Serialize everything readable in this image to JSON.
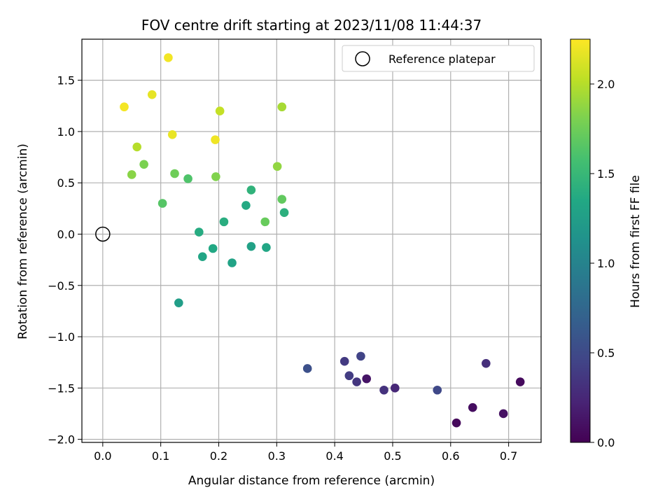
{
  "chart_data": {
    "type": "scatter",
    "title": "FOV centre drift starting at 2023/11/08 11:44:37",
    "xlabel": "Angular distance from reference (arcmin)",
    "ylabel": "Rotation from reference (arcmin)",
    "xlim": [
      -0.036,
      0.756
    ],
    "ylim": [
      -2.03,
      1.9
    ],
    "xticks": [
      0.0,
      0.1,
      0.2,
      0.3,
      0.4,
      0.5,
      0.6,
      0.7
    ],
    "xtick_labels": [
      "0.0",
      "0.1",
      "0.2",
      "0.3",
      "0.4",
      "0.5",
      "0.6",
      "0.7"
    ],
    "yticks": [
      -2.0,
      -1.5,
      -1.0,
      -0.5,
      0.0,
      0.5,
      1.0,
      1.5
    ],
    "ytick_labels": [
      "−2.0",
      "−1.5",
      "−1.0",
      "−0.5",
      "0.0",
      "0.5",
      "1.0",
      "1.5"
    ],
    "grid": true,
    "legend": {
      "placement": "top-right",
      "entries": [
        "Reference platepar"
      ]
    },
    "reference_point": {
      "x": 0.0,
      "y": 0.0
    },
    "colorbar": {
      "label": "Hours from first FF file",
      "colormap": "viridis",
      "range": [
        0.0,
        2.25
      ],
      "ticks": [
        0.0,
        0.5,
        1.0,
        1.5,
        2.0
      ],
      "tick_labels": [
        "0.0",
        "0.5",
        "1.0",
        "1.5",
        "2.0"
      ]
    },
    "points": [
      {
        "x": 0.61,
        "y": -1.84,
        "c": 0.05
      },
      {
        "x": 0.638,
        "y": -1.69,
        "c": 0.08
      },
      {
        "x": 0.691,
        "y": -1.75,
        "c": 0.1
      },
      {
        "x": 0.72,
        "y": -1.44,
        "c": 0.06
      },
      {
        "x": 0.455,
        "y": -1.41,
        "c": 0.12
      },
      {
        "x": 0.504,
        "y": -1.5,
        "c": 0.25
      },
      {
        "x": 0.661,
        "y": -1.26,
        "c": 0.3
      },
      {
        "x": 0.485,
        "y": -1.52,
        "c": 0.32
      },
      {
        "x": 0.438,
        "y": -1.44,
        "c": 0.35
      },
      {
        "x": 0.425,
        "y": -1.38,
        "c": 0.4
      },
      {
        "x": 0.417,
        "y": -1.24,
        "c": 0.38
      },
      {
        "x": 0.445,
        "y": -1.19,
        "c": 0.45
      },
      {
        "x": 0.577,
        "y": -1.52,
        "c": 0.48
      },
      {
        "x": 0.353,
        "y": -1.31,
        "c": 0.55
      },
      {
        "x": 0.131,
        "y": -0.67,
        "c": 1.25
      },
      {
        "x": 0.172,
        "y": -0.22,
        "c": 1.32
      },
      {
        "x": 0.19,
        "y": -0.14,
        "c": 1.35
      },
      {
        "x": 0.223,
        "y": -0.28,
        "c": 1.3
      },
      {
        "x": 0.256,
        "y": -0.12,
        "c": 1.28
      },
      {
        "x": 0.282,
        "y": -0.13,
        "c": 1.33
      },
      {
        "x": 0.166,
        "y": 0.02,
        "c": 1.38
      },
      {
        "x": 0.209,
        "y": 0.12,
        "c": 1.4
      },
      {
        "x": 0.247,
        "y": 0.28,
        "c": 1.36
      },
      {
        "x": 0.313,
        "y": 0.21,
        "c": 1.42
      },
      {
        "x": 0.256,
        "y": 0.43,
        "c": 1.45
      },
      {
        "x": 0.28,
        "y": 0.12,
        "c": 1.72
      },
      {
        "x": 0.103,
        "y": 0.3,
        "c": 1.65
      },
      {
        "x": 0.147,
        "y": 0.54,
        "c": 1.62
      },
      {
        "x": 0.05,
        "y": 0.58,
        "c": 1.85
      },
      {
        "x": 0.071,
        "y": 0.68,
        "c": 1.8
      },
      {
        "x": 0.124,
        "y": 0.59,
        "c": 1.75
      },
      {
        "x": 0.195,
        "y": 0.56,
        "c": 1.82
      },
      {
        "x": 0.309,
        "y": 0.34,
        "c": 1.7
      },
      {
        "x": 0.301,
        "y": 0.66,
        "c": 1.88
      },
      {
        "x": 0.059,
        "y": 0.85,
        "c": 2.0
      },
      {
        "x": 0.12,
        "y": 0.97,
        "c": 2.18
      },
      {
        "x": 0.194,
        "y": 0.92,
        "c": 2.2
      },
      {
        "x": 0.202,
        "y": 1.2,
        "c": 2.05
      },
      {
        "x": 0.309,
        "y": 1.24,
        "c": 1.95
      },
      {
        "x": 0.037,
        "y": 1.24,
        "c": 2.22
      },
      {
        "x": 0.085,
        "y": 1.36,
        "c": 2.17
      },
      {
        "x": 0.113,
        "y": 1.72,
        "c": 2.21
      }
    ]
  }
}
